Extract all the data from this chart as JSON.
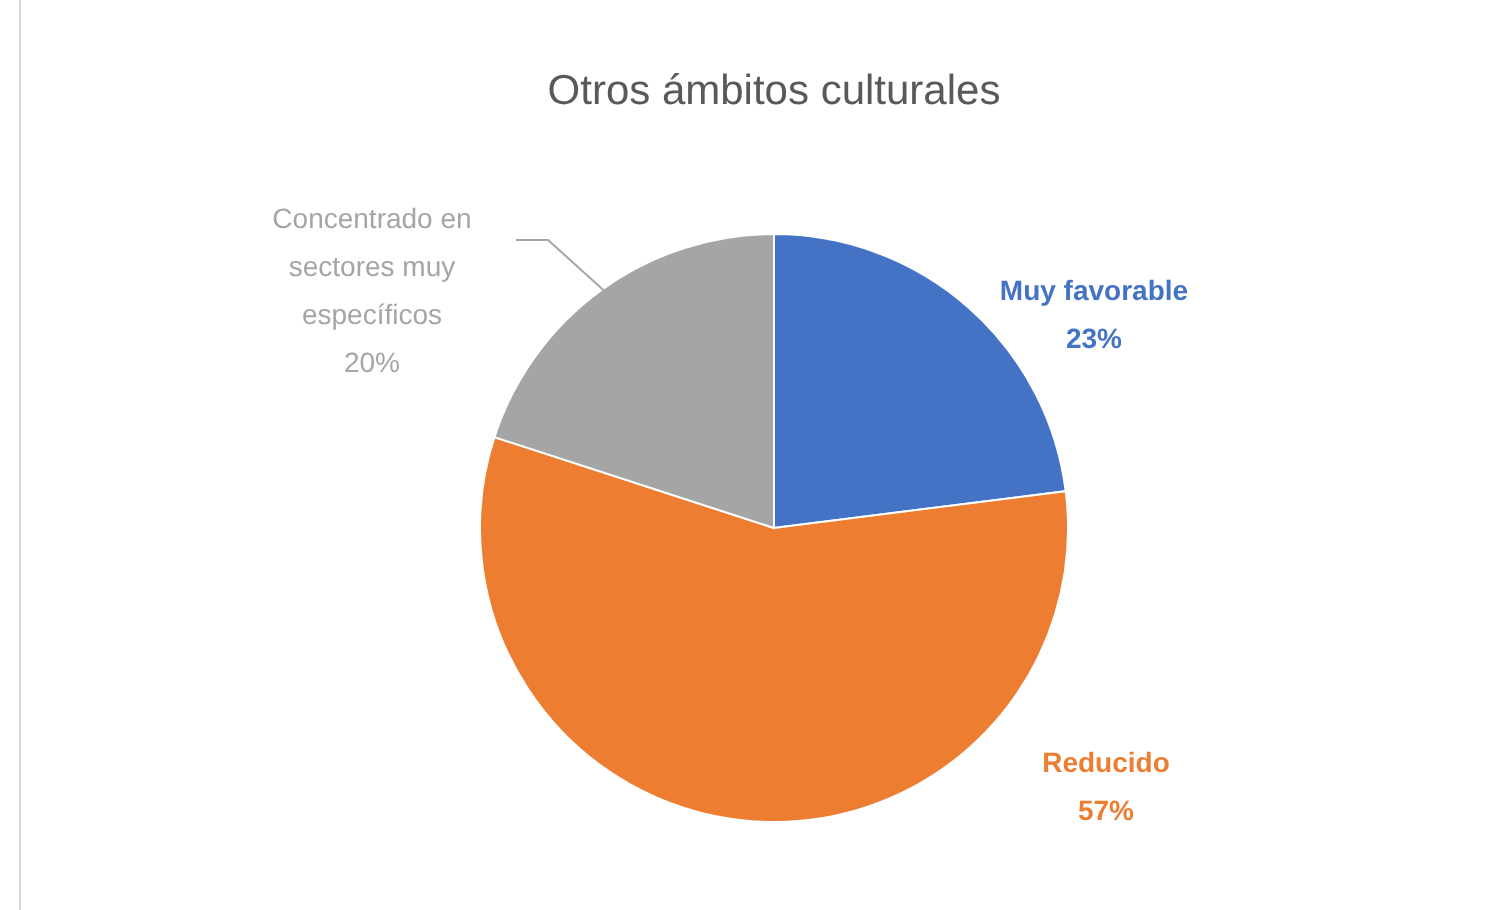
{
  "chart_data": {
    "type": "pie",
    "title": "Otros ámbitos culturales",
    "categories": [
      "Muy favorable",
      "Reducido",
      "Concentrado en sectores muy específicos"
    ],
    "values": [
      23,
      57,
      20
    ],
    "colors": [
      "#4472c4",
      "#ed7d31",
      "#a5a5a5"
    ],
    "value_labels": [
      "23%",
      "57%",
      "20%"
    ]
  }
}
